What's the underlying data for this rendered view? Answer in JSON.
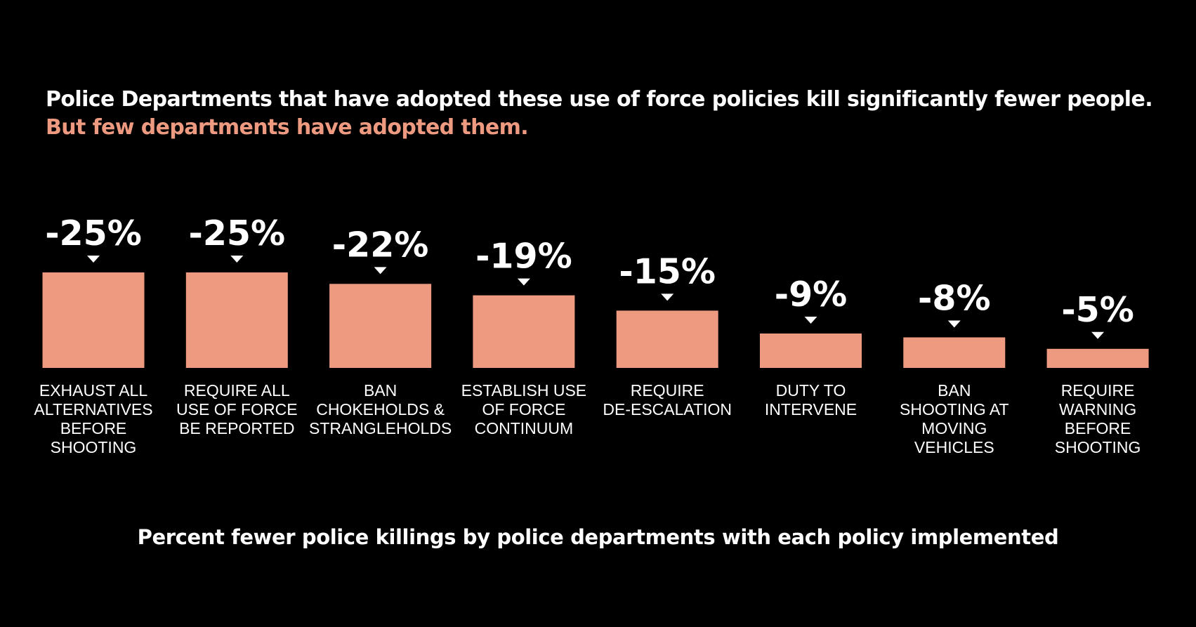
{
  "title": "Police Departments that have adopted these use of force policies kill significantly fewer people.",
  "subtitle": "But few departments have adopted them.",
  "caption": "Percent fewer police killings by police departments with each policy implemented",
  "colors": {
    "background": "#000000",
    "bar": "#ee9a80",
    "text": "#ffffff",
    "accent": "#ee9a80"
  },
  "chart_data": {
    "type": "bar",
    "categories": [
      [
        "EXHAUST ALL",
        "ALTERNATIVES",
        "BEFORE",
        "SHOOTING"
      ],
      [
        "REQUIRE ALL",
        "USE OF FORCE",
        "BE REPORTED"
      ],
      [
        "BAN",
        "CHOKEHOLDS &",
        "STRANGLEHOLDS"
      ],
      [
        "ESTABLISH USE",
        "OF FORCE",
        "CONTINUUM"
      ],
      [
        "REQUIRE",
        "DE-ESCALATION"
      ],
      [
        "DUTY TO",
        "INTERVENE"
      ],
      [
        "BAN",
        "SHOOTING AT",
        "MOVING",
        "VEHICLES"
      ],
      [
        "REQUIRE",
        "WARNING",
        "BEFORE",
        "SHOOTING"
      ]
    ],
    "values": [
      -25,
      -25,
      -22,
      -19,
      -15,
      -9,
      -8,
      -5
    ],
    "value_labels": [
      "-25%",
      "-25%",
      "-22%",
      "-19%",
      "-15%",
      "-9%",
      "-8%",
      "-5%"
    ],
    "xlabel": "Percent fewer police killings by police departments with each policy implemented",
    "ylabel": "",
    "ylim": [
      0,
      25
    ],
    "grid": false,
    "legend": "none"
  }
}
